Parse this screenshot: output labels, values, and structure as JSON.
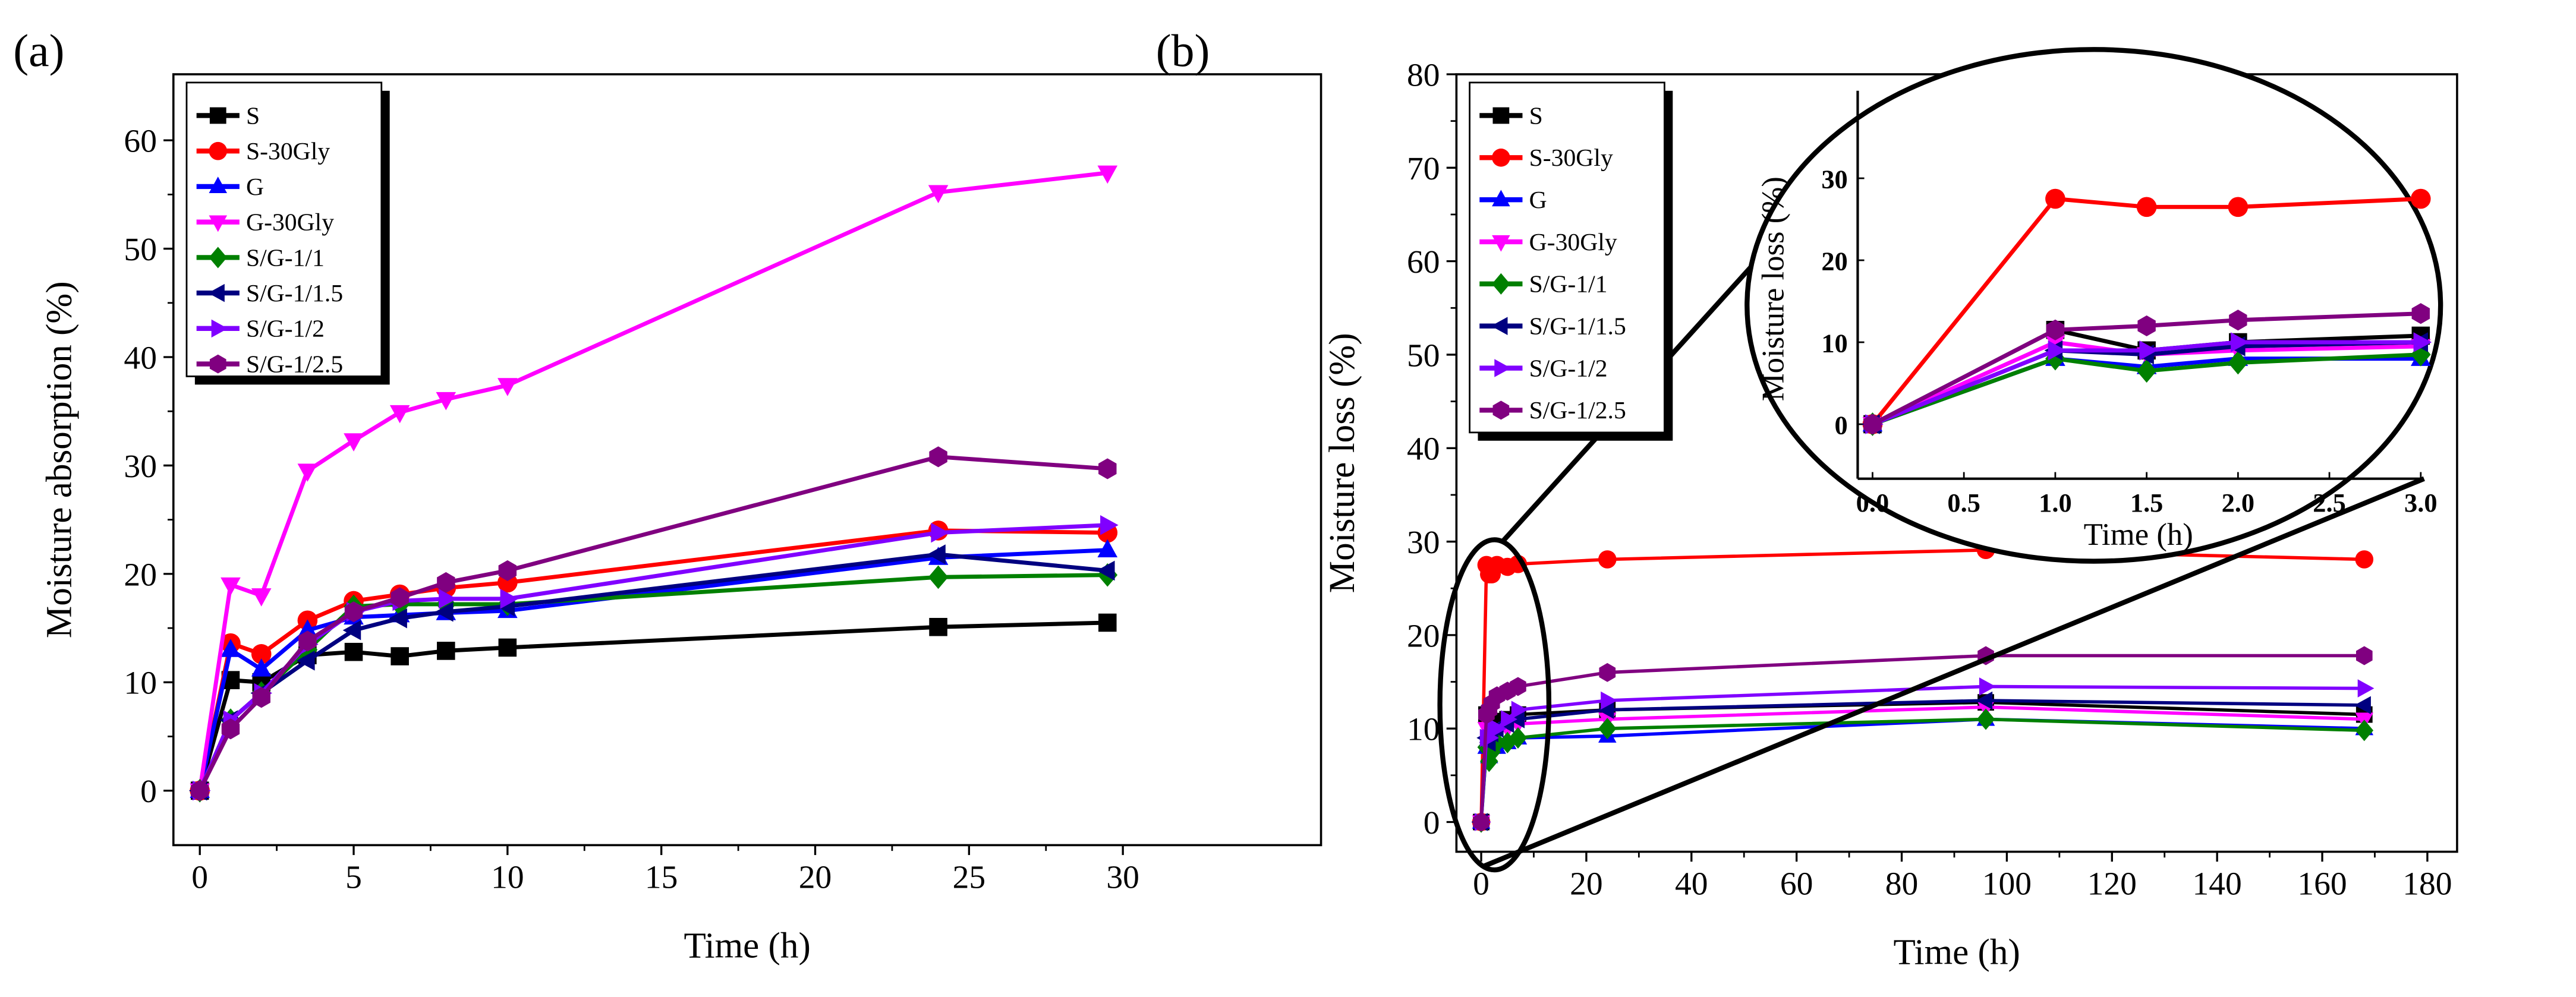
{
  "chart_data": [
    {
      "type": "line",
      "panel_label": "(a)",
      "xlabel": "Time (h)",
      "ylabel": "Moisture absorption (%)",
      "xlim": [
        -0.5,
        33
      ],
      "ylim": [
        -6,
        67
      ],
      "xticks": [
        0,
        5,
        10,
        15,
        20,
        25,
        30
      ],
      "yticks": [
        0,
        10,
        20,
        30,
        40,
        50,
        60
      ],
      "legend_position": "top-left",
      "x": [
        0,
        1,
        2,
        3.5,
        5,
        6.5,
        8,
        10,
        24,
        29.5
      ],
      "series": [
        {
          "name": "S",
          "color": "#000000",
          "marker": "square",
          "values": [
            0,
            10.2,
            10,
            12.5,
            12.8,
            12.4,
            12.9,
            13.2,
            15.1,
            15.5
          ]
        },
        {
          "name": "S-30Gly",
          "color": "#ff0000",
          "marker": "circle",
          "values": [
            0,
            13.6,
            12.6,
            15.7,
            17.5,
            18.1,
            18.7,
            19.2,
            24.0,
            23.8
          ]
        },
        {
          "name": "G",
          "color": "#0000ff",
          "marker": "triangle-up",
          "values": [
            0,
            13.0,
            11.2,
            14.8,
            16.0,
            16.2,
            16.4,
            16.6,
            21.5,
            22.2
          ]
        },
        {
          "name": "G-30Gly",
          "color": "#ff00ff",
          "marker": "triangle-down",
          "values": [
            0,
            19.0,
            18.0,
            29.5,
            32.3,
            34.9,
            36.1,
            37.4,
            55.2,
            57.0
          ]
        },
        {
          "name": "S/G-1/1",
          "color": "#008000",
          "marker": "diamond",
          "values": [
            0,
            6.5,
            9.0,
            13.0,
            17.0,
            17.2,
            17.2,
            17.2,
            19.7,
            19.9
          ]
        },
        {
          "name": "S/G-1/1.5",
          "color": "#000080",
          "marker": "triangle-left",
          "values": [
            0,
            6.5,
            9.0,
            12.0,
            14.8,
            15.9,
            16.5,
            17.0,
            21.8,
            20.3
          ]
        },
        {
          "name": "S/G-1/2",
          "color": "#8000ff",
          "marker": "triangle-right",
          "values": [
            0,
            6.5,
            9.0,
            13.5,
            16.5,
            17.5,
            17.7,
            17.7,
            23.8,
            24.5
          ]
        },
        {
          "name": "S/G-1/2.5",
          "color": "#800080",
          "marker": "hexagon",
          "values": [
            0,
            5.7,
            8.6,
            13.8,
            16.5,
            17.8,
            19.2,
            20.3,
            30.8,
            29.7
          ]
        }
      ]
    },
    {
      "type": "line",
      "panel_label": "(b)",
      "xlabel": "Time (h)",
      "ylabel": "Moisture loss (%)",
      "xlim": [
        -2,
        188
      ],
      "ylim": [
        -5,
        80
      ],
      "xticks": [
        0,
        20,
        40,
        60,
        80,
        100,
        120,
        140,
        160,
        180
      ],
      "yticks": [
        0,
        10,
        20,
        30,
        40,
        50,
        60,
        70,
        80
      ],
      "legend_position": "top-left",
      "x": [
        0,
        1,
        1.5,
        2,
        3,
        5,
        7,
        24,
        96,
        168
      ],
      "series": [
        {
          "name": "S",
          "color": "#000000",
          "marker": "square",
          "values": [
            0,
            11.5,
            9.0,
            10.0,
            10.8,
            11.0,
            11.5,
            12.0,
            12.8,
            11.5
          ]
        },
        {
          "name": "S-30Gly",
          "color": "#ff0000",
          "marker": "circle",
          "values": [
            0,
            27.5,
            26.5,
            26.5,
            27.5,
            27.3,
            27.6,
            28.1,
            29.1,
            28.1
          ]
        },
        {
          "name": "G",
          "color": "#0000ff",
          "marker": "triangle-up",
          "values": [
            0,
            8.0,
            7.0,
            8.0,
            8.0,
            8.5,
            9.0,
            9.2,
            11.0,
            10.0
          ]
        },
        {
          "name": "G-30Gly",
          "color": "#ff00ff",
          "marker": "triangle-down",
          "values": [
            0,
            10.0,
            8.5,
            9.0,
            9.5,
            10.0,
            10.5,
            11.0,
            12.3,
            11.0
          ]
        },
        {
          "name": "S/G-1/1",
          "color": "#008000",
          "marker": "diamond",
          "values": [
            0,
            8.0,
            6.5,
            7.5,
            8.5,
            8.5,
            9.0,
            10.0,
            11.0,
            9.8
          ]
        },
        {
          "name": "S/G-1/1.5",
          "color": "#000080",
          "marker": "triangle-left",
          "values": [
            0,
            9.0,
            8.5,
            9.5,
            10.0,
            10.5,
            11.0,
            12.0,
            13.0,
            12.5
          ]
        },
        {
          "name": "S/G-1/2",
          "color": "#8000ff",
          "marker": "triangle-right",
          "values": [
            0,
            9.0,
            9.0,
            10.0,
            10.0,
            11.0,
            12.0,
            13.0,
            14.5,
            14.3
          ]
        },
        {
          "name": "S/G-1/2.5",
          "color": "#800080",
          "marker": "hexagon",
          "values": [
            0,
            11.5,
            12.0,
            12.7,
            13.5,
            14.0,
            14.5,
            16.0,
            17.8,
            17.8
          ]
        }
      ],
      "inset": {
        "xlabel": "Time (h)",
        "ylabel": "Moisture loss (%)",
        "xlim": [
          -0.1,
          3.0
        ],
        "ylim": [
          -5,
          35
        ],
        "xticks": [
          "0.0",
          "0.5",
          "1.0",
          "1.5",
          "2.0",
          "2.5",
          "3.0"
        ],
        "yticks": [
          0,
          10,
          20,
          30
        ],
        "x_count": 5
      }
    }
  ]
}
